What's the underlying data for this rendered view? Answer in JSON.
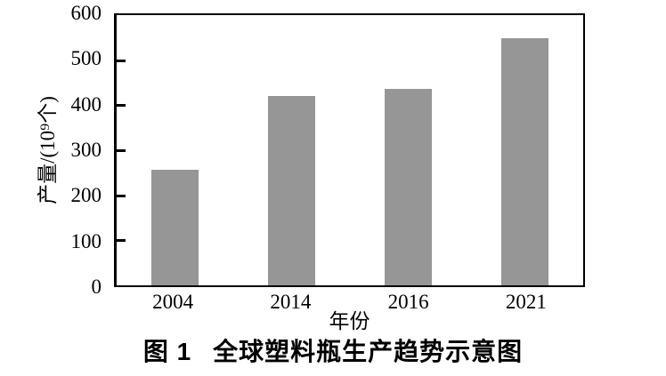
{
  "figure": {
    "caption_label": "图 1",
    "caption_title": "全球塑料瓶生产趋势示意图"
  },
  "chart_data": {
    "type": "bar",
    "title": "图 1 全球塑料瓶生产趋势示意图",
    "categories": [
      "2004",
      "2014",
      "2016",
      "2021"
    ],
    "values": [
      257,
      421,
      437,
      548
    ],
    "xlabel": "年份",
    "ylabel": "产量/(10⁹个)",
    "ylim": [
      0,
      600
    ],
    "yticks": [
      0,
      100,
      200,
      300,
      400,
      500,
      600
    ],
    "bar_color": "#969696",
    "axis_color": "#000000",
    "grid": false,
    "legend": "none"
  }
}
